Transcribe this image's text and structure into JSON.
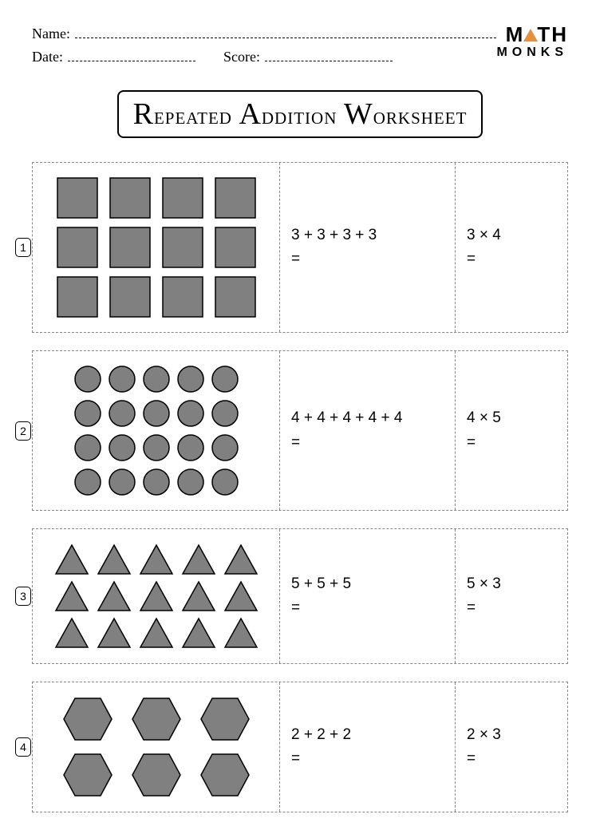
{
  "header": {
    "name_label": "Name:",
    "date_label": "Date:",
    "score_label": "Score:"
  },
  "logo": {
    "line1_a": "M",
    "line1_b": "TH",
    "line2": "MONKS",
    "triangle_color": "#e88f3a"
  },
  "title": "Repeated Addition Worksheet",
  "shape_fill": "#808080",
  "shape_stroke": "#000000",
  "border_color": "#888888",
  "problems": [
    {
      "n": "1",
      "shape": "square",
      "rows": 3,
      "cols": 4,
      "addition": "3 + 3 + 3 + 3",
      "mult": "3 × 4",
      "eq": "="
    },
    {
      "n": "2",
      "shape": "circle",
      "rows": 4,
      "cols": 5,
      "addition": "4 + 4 + 4 + 4 + 4",
      "mult": "4 × 5",
      "eq": "="
    },
    {
      "n": "3",
      "shape": "triangle",
      "rows": 3,
      "cols": 5,
      "addition": "5 + 5 + 5",
      "mult": "5 × 3",
      "eq": "="
    },
    {
      "n": "4",
      "shape": "hexagon",
      "rows": 2,
      "cols": 3,
      "addition": "2 + 2 + 2",
      "mult": "2 × 3",
      "eq": "="
    }
  ]
}
